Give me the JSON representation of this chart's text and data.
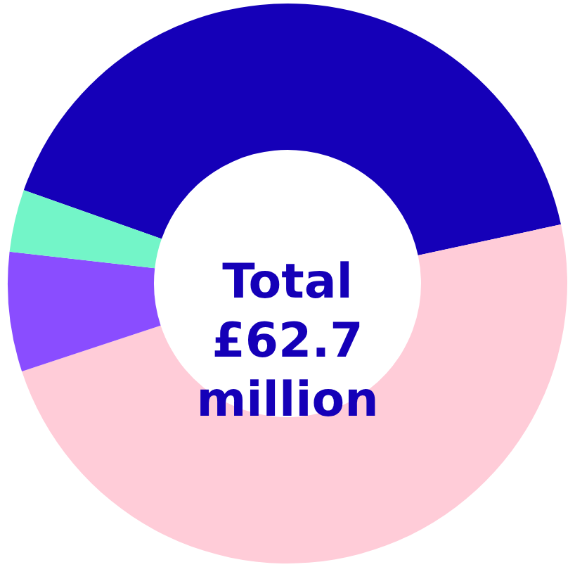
{
  "chart_data": {
    "type": "donut",
    "categories": [
      null,
      null,
      null,
      null
    ],
    "values": [
      41.2,
      48.3,
      6.9,
      3.6
    ],
    "colors": [
      "#1500b8",
      "#ffccd8",
      "#8a4dff",
      "#73f5c8"
    ],
    "annotations": [
      "Total £62.7 million"
    ]
  }
}
